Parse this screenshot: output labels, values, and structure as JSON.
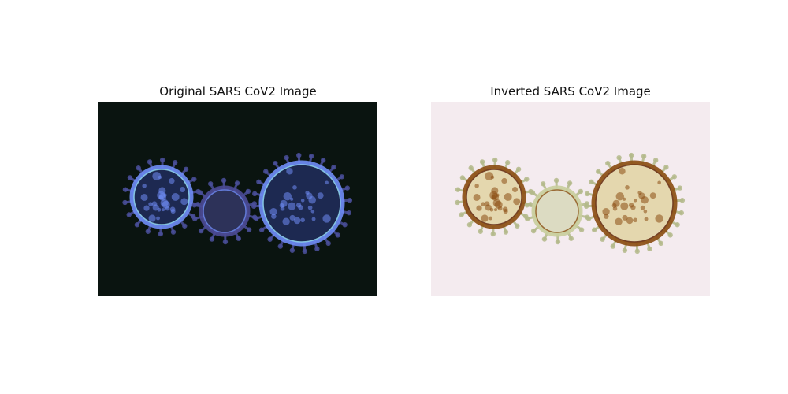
{
  "panels": [
    {
      "title": "Original SARS CoV2 Image",
      "image_semantic": "virus-micrograph-original",
      "colors": {
        "background": "#0a1410",
        "membrane": "#6f8cf5",
        "highlight": "#9ee8ff",
        "spikes": "#4a4f9a",
        "interior": "#2d3a86",
        "small_virion": "#4b4a95"
      }
    },
    {
      "title": "Inverted SARS CoV2 Image",
      "image_semantic": "virus-micrograph-inverted",
      "colors": {
        "background": "#f4ebef",
        "membrane": "#8a4d12",
        "highlight": "#5a1e08",
        "spikes": "#b3b98a",
        "interior": "#d7c779",
        "small_virion": "#c9ce9d"
      }
    }
  ]
}
